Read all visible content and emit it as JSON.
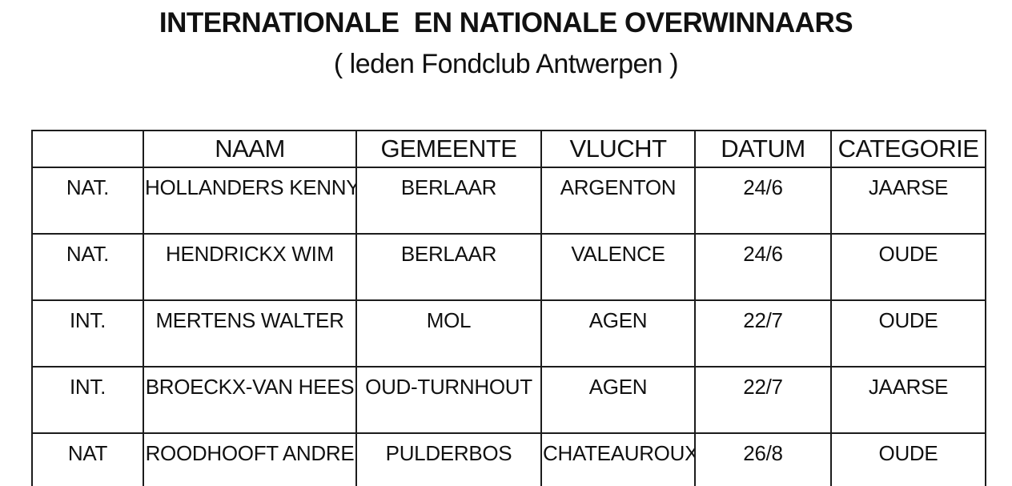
{
  "title": "INTERNATIONALE  EN NATIONALE OVERWINNAARS",
  "subtitle": "( leden Fondclub Antwerpen )",
  "colors": {
    "text": "#111111",
    "border": "#1c1c1c",
    "background": "#ffffff"
  },
  "table": {
    "headers": [
      "",
      "NAAM",
      "GEMEENTE",
      "VLUCHT",
      "DATUM",
      "CATEGORIE"
    ],
    "rows": [
      [
        "NAT.",
        "HOLLANDERS KENNY",
        "BERLAAR",
        "ARGENTON",
        "24/6",
        "JAARSE"
      ],
      [
        "NAT.",
        "HENDRICKX WIM",
        "BERLAAR",
        "VALENCE",
        "24/6",
        "OUDE"
      ],
      [
        "INT.",
        "MERTENS WALTER",
        "MOL",
        "AGEN",
        "22/7",
        "OUDE"
      ],
      [
        "INT.",
        "BROECKX-VAN HEES",
        "OUD-TURNHOUT",
        "AGEN",
        "22/7",
        "JAARSE"
      ],
      [
        "NAT",
        "ROODHOOFT ANDRE",
        "PULDERBOS",
        "CHATEAUROUX",
        "26/8",
        "OUDE"
      ]
    ]
  }
}
